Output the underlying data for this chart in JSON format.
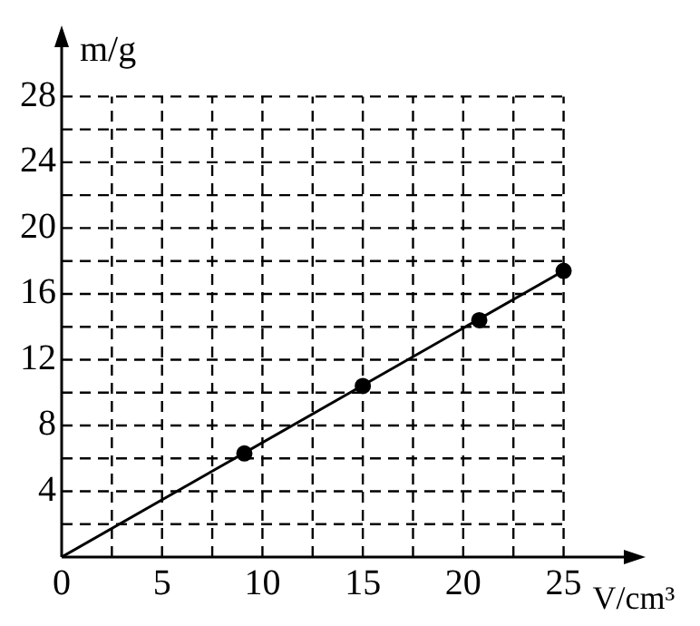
{
  "chart_data": {
    "type": "scatter",
    "xlabel": "V/cm³",
    "ylabel": "m/g",
    "xlim": [
      0,
      28
    ],
    "ylim": [
      0,
      31
    ],
    "xticks": [
      0,
      {
        "value": 2.5,
        "label": null
      },
      5,
      {
        "value": 7.5,
        "label": null
      },
      10,
      {
        "value": 12.5,
        "label": null
      },
      15,
      {
        "value": 17.5,
        "label": null
      },
      20,
      {
        "value": 22.5,
        "label": null
      },
      25
    ],
    "yticks": [
      {
        "value": 0,
        "label": null
      },
      {
        "value": 2,
        "label": null
      },
      4,
      {
        "value": 6,
        "label": null
      },
      8,
      {
        "value": 10,
        "label": null
      },
      12,
      {
        "value": 14,
        "label": null
      },
      16,
      {
        "value": 18,
        "label": null
      },
      20,
      {
        "value": 22,
        "label": null
      },
      24,
      {
        "value": 26,
        "label": null
      },
      28
    ],
    "grid": true,
    "series": [
      {
        "type": "scatter",
        "color": "#000000",
        "marker": "circle",
        "x": [
          9.1,
          15,
          20.8,
          25
        ],
        "values": [
          6.3,
          10.4,
          14.4,
          17.4
        ]
      },
      {
        "type": "line",
        "color": "#000000",
        "marker": "none",
        "x": [
          0,
          25
        ],
        "values": [
          0,
          17.4
        ]
      }
    ]
  }
}
